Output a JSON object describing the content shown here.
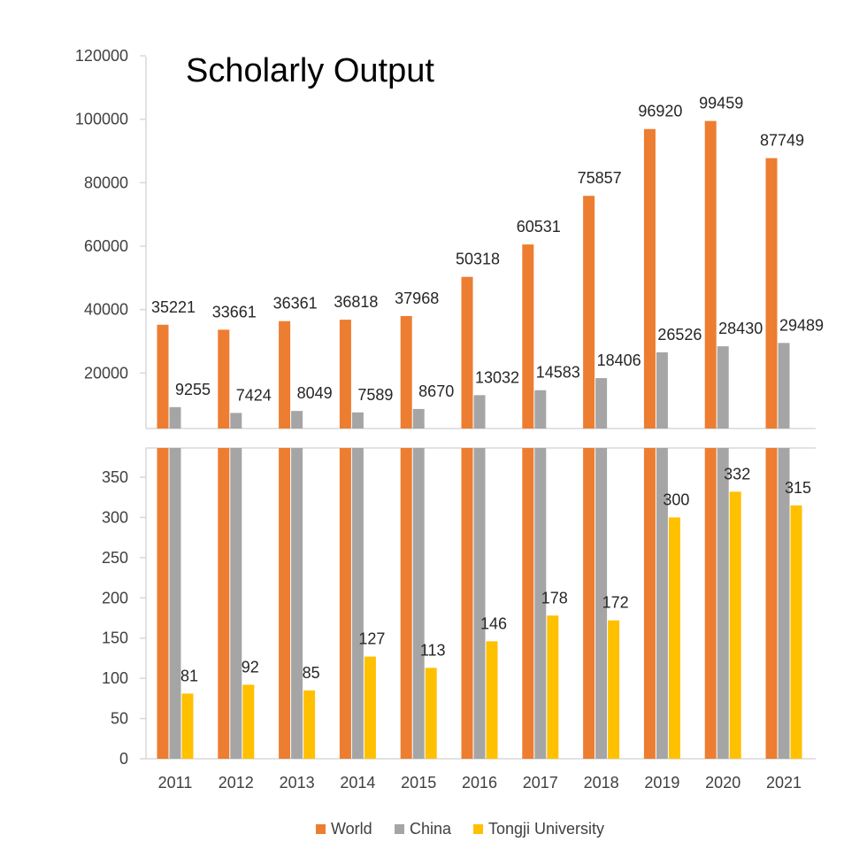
{
  "chart_data": {
    "type": "bar",
    "title": "Scholarly Output",
    "xlabel": "",
    "ylabel": "",
    "categories": [
      "2011",
      "2012",
      "2013",
      "2014",
      "2015",
      "2016",
      "2017",
      "2018",
      "2019",
      "2020",
      "2021"
    ],
    "series": [
      {
        "name": "World",
        "color": "#ED7D31",
        "values": [
          35221,
          33661,
          36361,
          36818,
          37968,
          50318,
          60531,
          75857,
          96920,
          99459,
          87749
        ]
      },
      {
        "name": "China",
        "color": "#A5A5A5",
        "values": [
          9255,
          7424,
          8049,
          7589,
          8670,
          13032,
          14583,
          18406,
          26526,
          28430,
          29489
        ]
      },
      {
        "name": "Tongji University",
        "color": "#FFC000",
        "values": [
          81,
          92,
          85,
          127,
          113,
          146,
          178,
          172,
          300,
          332,
          315
        ]
      }
    ],
    "axes": {
      "upper": {
        "ylim": [
          0,
          120000
        ],
        "ticks": [
          "20000",
          "40000",
          "60000",
          "80000",
          "100000",
          "120000"
        ]
      },
      "lower": {
        "ylim": [
          0,
          380
        ],
        "ticks": [
          "0",
          "50",
          "100",
          "150",
          "200",
          "250",
          "300",
          "350"
        ]
      }
    },
    "broken_axis": true,
    "grid": false,
    "legend_position": "bottom"
  }
}
